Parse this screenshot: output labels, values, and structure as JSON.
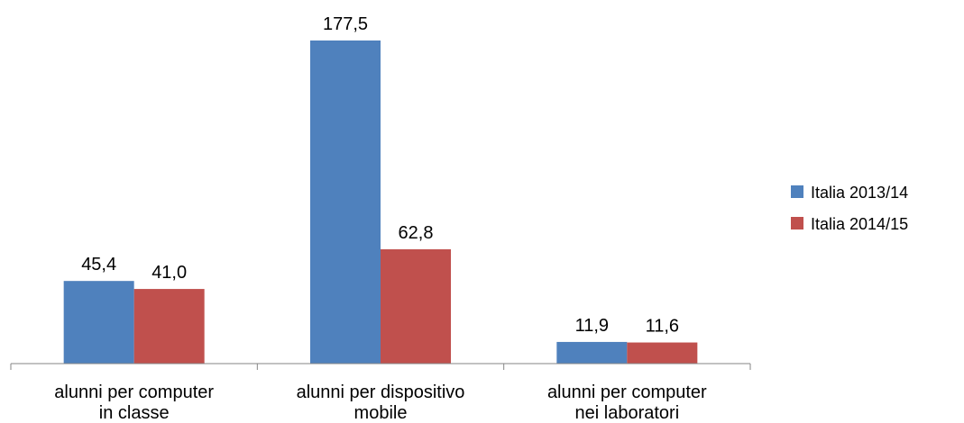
{
  "chart_data": {
    "type": "bar",
    "categories": [
      [
        "alunni per computer",
        "in classe"
      ],
      [
        "alunni per dispositivo",
        "mobile"
      ],
      [
        "alunni per computer",
        "nei laboratori"
      ]
    ],
    "series": [
      {
        "name": "Italia 2013/14",
        "color": "#4F81BD",
        "values": [
          45.4,
          177.5,
          11.9
        ],
        "labels": [
          "45,4",
          "177,5",
          "11,9"
        ]
      },
      {
        "name": "Italia 2014/15",
        "color": "#C0504D",
        "values": [
          41.0,
          62.8,
          11.6
        ],
        "labels": [
          "41,0",
          "62,8",
          "11,6"
        ]
      }
    ],
    "title": "",
    "xlabel": "",
    "ylabel": "",
    "ylim": [
      0,
      177.5
    ],
    "grid": false,
    "legend": "right"
  }
}
